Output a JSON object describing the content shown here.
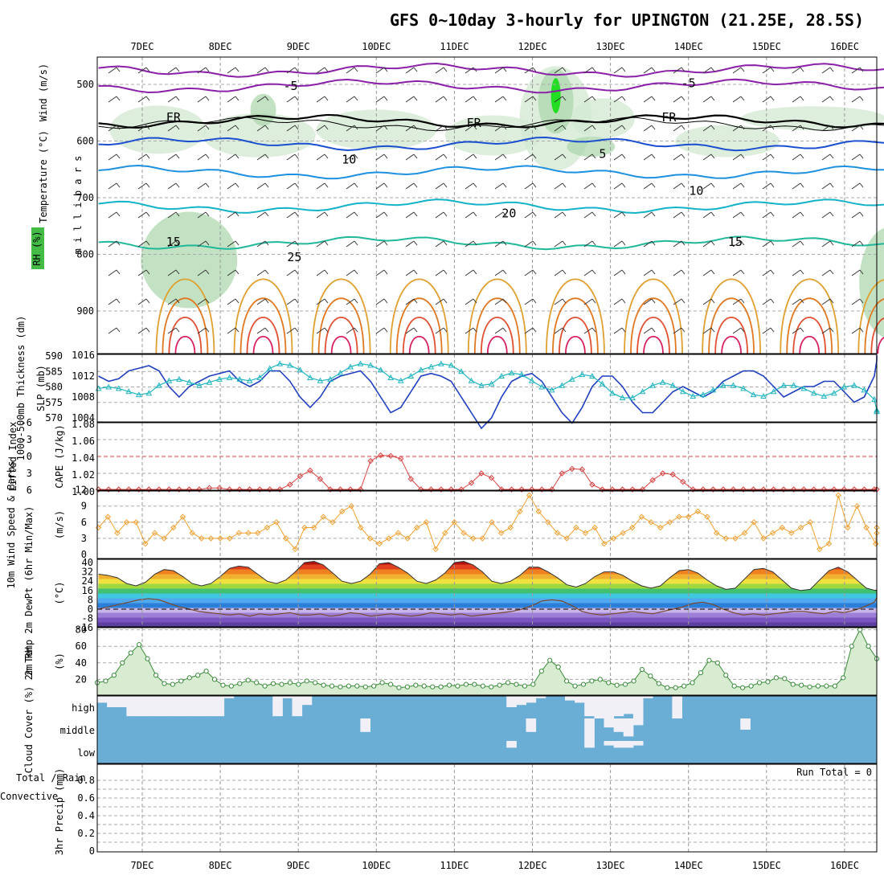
{
  "chart_data": {
    "type": "meteogram",
    "title": "GFS 0~10day 3-hourly for UPINGTON (21.25E, 28.5S)",
    "dates": [
      "7DEC",
      "8DEC",
      "9DEC",
      "10DEC",
      "11DEC",
      "12DEC",
      "13DEC",
      "14DEC",
      "15DEC",
      "16DEC"
    ],
    "upper_air": {
      "ylabel_left": "RH (%)",
      "ylabel_temp": "Temperature (°C)",
      "ylabel_wind": "Wind (m/s)",
      "ylabel_mb": "m i l l i b a r s",
      "pressure_ticks": [
        "500",
        "600",
        "700",
        "800",
        "900"
      ],
      "contour_labels": [
        {
          "text": "FR",
          "day": 0.4,
          "p": 565
        },
        {
          "text": "FR",
          "day": 4.25,
          "p": 575
        },
        {
          "text": "FR",
          "day": 6.75,
          "p": 565
        },
        {
          "text": "-5",
          "day": 1.9,
          "p": 510
        },
        {
          "text": "-5",
          "day": 7.0,
          "p": 505
        },
        {
          "text": "5",
          "day": 5.9,
          "p": 630
        },
        {
          "text": "10",
          "day": 2.65,
          "p": 640
        },
        {
          "text": "10",
          "day": 7.1,
          "p": 695
        },
        {
          "text": "15",
          "day": 0.4,
          "p": 785
        },
        {
          "text": "15",
          "day": 7.6,
          "p": 785
        },
        {
          "text": "20",
          "day": 4.7,
          "p": 735
        },
        {
          "text": "25",
          "day": 1.95,
          "p": 812
        }
      ]
    },
    "thickness_slp": {
      "ylabel_thickness": "1000-500mb Thickness (dm)",
      "ylabel_slp": "SLP (mb)",
      "thickness_ticks": [
        "570",
        "575",
        "580",
        "585",
        "590"
      ],
      "slp_ticks": [
        "1004",
        "1008",
        "1012",
        "1016"
      ],
      "thickness_dm": [
        579.5,
        580,
        579.5,
        578.5,
        577.5,
        578,
        580.5,
        582,
        582.5,
        581.5,
        580.5,
        581.5,
        582.5,
        583,
        582.5,
        582,
        583,
        586,
        587.5,
        587,
        585.5,
        583,
        582,
        582.5,
        584.5,
        586.5,
        587.5,
        587,
        585.5,
        583,
        582,
        583.5,
        585.5,
        586.5,
        587.5,
        587,
        585,
        582,
        580.5,
        581,
        583.5,
        584.5,
        584,
        582,
        580,
        579,
        580.5,
        582.5,
        584,
        583.5,
        581,
        578,
        576.5,
        576.5,
        578.5,
        580.5,
        581.5,
        580.5,
        578.5,
        577,
        577.5,
        579,
        580.5,
        580.5,
        579.5,
        577.5,
        577,
        578.5,
        580.5,
        580.5,
        579.5,
        578,
        577,
        578,
        580,
        580.5,
        579,
        576,
        572.5,
        572
      ],
      "slp_mb": [
        1012,
        1011,
        1011.5,
        1013,
        1013.5,
        1014,
        1013,
        1010,
        1008,
        1010,
        1011,
        1012,
        1012.5,
        1013,
        1011,
        1010,
        1011,
        1013,
        1013,
        1011,
        1008,
        1006,
        1008,
        1011,
        1012,
        1012.5,
        1013,
        1011,
        1008,
        1005,
        1006,
        1009,
        1012,
        1012.5,
        1012,
        1011,
        1008,
        1005,
        1002,
        1004,
        1008,
        1011,
        1012,
        1012.5,
        1011,
        1008,
        1005,
        1003,
        1006,
        1010,
        1012,
        1012,
        1010,
        1007,
        1005,
        1005,
        1007,
        1009,
        1010,
        1009,
        1008,
        1009,
        1011,
        1012,
        1013,
        1013,
        1012,
        1010,
        1008,
        1009,
        1010,
        1010,
        1011,
        1011,
        1009,
        1007,
        1008,
        1012,
        1015,
        1016
      ]
    },
    "cape_li": {
      "ylabel_li": "Lifted Index",
      "ylabel_cape": "CAPE (J/kg)",
      "li_ticks": [
        "-6",
        "-3",
        "0",
        "3",
        "6"
      ],
      "cape_ticks": [
        "1.00",
        "1.02",
        "1.04",
        "1.06",
        "1.08"
      ],
      "li_dashed_zero": 0,
      "li_values": [
        6,
        6,
        6,
        6,
        6,
        6,
        6,
        6,
        6,
        6,
        6,
        5.6,
        5.6,
        6,
        6,
        6,
        6,
        6,
        6,
        5,
        3.5,
        2.5,
        4,
        6,
        6,
        6,
        6,
        0.8,
        -0.2,
        -0.1,
        0.4,
        4,
        6,
        6,
        6,
        6,
        6,
        4.7,
        3,
        3.8,
        6,
        6,
        6,
        6,
        6,
        6,
        3,
        2.2,
        2.3,
        5,
        6,
        6,
        6,
        6,
        6,
        4.2,
        3,
        3.2,
        4.5,
        6,
        6,
        6,
        6,
        6,
        6,
        6,
        6,
        6,
        6,
        6,
        6,
        6,
        6,
        6,
        6,
        6,
        6,
        6,
        6,
        6
      ]
    },
    "wind10m": {
      "ylabel": "10m Wind Speed & Barbs",
      "unit": "(m/s)",
      "ticks": [
        "0",
        "3",
        "6",
        "9",
        "12"
      ],
      "speed": [
        5,
        7,
        4,
        6,
        6,
        2,
        4,
        3,
        5,
        7,
        4,
        3,
        3,
        3,
        3,
        4,
        4,
        4,
        5,
        6,
        3,
        1,
        5,
        5,
        7,
        6,
        8,
        9,
        5,
        3,
        2,
        3,
        4,
        3,
        5,
        6,
        1,
        4,
        6,
        4,
        3,
        3,
        6,
        4,
        5,
        8,
        11,
        8,
        6,
        4,
        3,
        5,
        4,
        5,
        2,
        3,
        4,
        5,
        7,
        6,
        5,
        6,
        7,
        7,
        8,
        7,
        4,
        3,
        3,
        4,
        6,
        3,
        4,
        5,
        4,
        5,
        6,
        1,
        2,
        11,
        5,
        9,
        5,
        2,
        5,
        4
      ]
    },
    "temp2m": {
      "ylabel": "2m Temp 2m DewPt (6hr Min/Max)",
      "unit": "(°C)",
      "ticks": [
        "-16",
        "-8",
        "0",
        "8",
        "16",
        "24",
        "32",
        "40"
      ],
      "temp": [
        30,
        29,
        27,
        22,
        20,
        23,
        30,
        34,
        33,
        28,
        22,
        20,
        22,
        28,
        35,
        37,
        36,
        30,
        24,
        22,
        25,
        32,
        40,
        41,
        38,
        31,
        24,
        22,
        24,
        30,
        39,
        40,
        36,
        31,
        24,
        22,
        25,
        31,
        40,
        41,
        38,
        32,
        24,
        22,
        24,
        29,
        36,
        36,
        32,
        27,
        21,
        19,
        22,
        28,
        32,
        32,
        29,
        24,
        20,
        18,
        20,
        27,
        33,
        34,
        31,
        25,
        20,
        17,
        18,
        26,
        34,
        35,
        32,
        25,
        18,
        16,
        17,
        25,
        33,
        36,
        32,
        25,
        18,
        16,
        17,
        22
      ],
      "dewpt": [
        0,
        2,
        4,
        6,
        8,
        9,
        8,
        5,
        2,
        0,
        -2,
        -3,
        -4,
        -5,
        -4,
        -6,
        -4,
        -5,
        -4,
        -3,
        -5,
        -5,
        -4,
        -6,
        -5,
        -3,
        -4,
        -6,
        -5,
        -4,
        -5,
        -6,
        -5,
        -3,
        -4,
        -5,
        -4,
        -6,
        -5,
        -4,
        -3,
        -2,
        0,
        3,
        7,
        8,
        7,
        3,
        -2,
        -4,
        -5,
        -4,
        -3,
        -2,
        -3,
        -4,
        -2,
        0,
        2,
        5,
        6,
        4,
        0,
        -3,
        -5,
        -4,
        -5,
        -4,
        -3,
        -2,
        -2,
        -3,
        -4,
        -2,
        -3,
        -1,
        2,
        6,
        10,
        16
      ]
    },
    "rh2m": {
      "ylabel": "2m RH",
      "unit": "(%)",
      "ticks": [
        "20",
        "40",
        "60",
        "80"
      ],
      "values": [
        16,
        18,
        25,
        40,
        52,
        62,
        45,
        25,
        15,
        14,
        18,
        22,
        25,
        30,
        20,
        13,
        12,
        15,
        19,
        16,
        12,
        15,
        14,
        16,
        14,
        18,
        16,
        13,
        12,
        11,
        12,
        12,
        11,
        12,
        16,
        14,
        10,
        11,
        13,
        12,
        11,
        11,
        13,
        12,
        14,
        14,
        12,
        11,
        13,
        16,
        14,
        12,
        14,
        30,
        43,
        35,
        18,
        12,
        14,
        18,
        20,
        16,
        13,
        14,
        18,
        32,
        24,
        15,
        10,
        10,
        12,
        16,
        28,
        43,
        40,
        25,
        12,
        10,
        12,
        16,
        17,
        22,
        21,
        14,
        13,
        11,
        12,
        12,
        12,
        22,
        60,
        80,
        60,
        45
      ]
    },
    "cloud": {
      "ylabel": "Cloud Cover (%)",
      "levels": [
        "high",
        "middle",
        "low"
      ],
      "background_color": "#6aaed6",
      "clear_color": "#f2f0f7",
      "high": [
        0.3,
        0.5,
        0.5,
        0.9,
        0.9,
        0.9,
        0.9,
        0.9,
        0.9,
        0.9,
        0.9,
        0.9,
        0.9,
        0.1,
        0,
        0,
        0,
        0,
        0.9,
        0.1,
        0.9,
        0.4,
        0,
        0,
        0,
        0,
        0,
        0,
        0,
        0,
        0,
        0,
        0,
        0,
        0,
        0,
        0,
        0,
        0,
        0,
        0,
        0,
        0.5,
        0.4,
        0.3,
        0.1,
        0,
        0,
        0.2,
        0.3,
        0.9,
        1,
        1,
        0.9,
        0.8,
        1,
        0.1,
        0,
        0,
        1,
        0,
        0,
        0,
        0,
        0,
        0,
        0,
        0,
        0,
        0,
        0,
        0,
        0,
        0,
        0,
        0,
        0,
        0,
        0,
        0
      ],
      "middle": [
        0,
        0,
        0,
        0,
        0,
        0,
        0,
        0,
        0,
        0,
        0,
        0,
        0,
        0,
        0,
        0,
        0,
        0,
        0,
        0,
        0,
        0,
        0,
        0,
        0,
        0,
        0,
        0.6,
        0,
        0,
        0,
        0,
        0,
        0,
        0,
        0,
        0,
        0,
        0,
        0,
        0,
        0,
        0,
        0,
        0.6,
        0,
        0,
        0,
        0,
        0,
        1,
        0,
        0.4,
        0.6,
        0.8,
        0.3,
        0,
        0,
        0,
        0,
        0,
        0,
        0,
        0,
        0,
        0,
        0.5,
        0,
        0,
        0,
        0,
        0,
        0,
        0,
        0,
        0,
        0,
        0,
        0,
        0
      ],
      "low": [
        0,
        0,
        0,
        0,
        0,
        0,
        0,
        0,
        0,
        0,
        0,
        0,
        0,
        0,
        0,
        0,
        0,
        0,
        0,
        0,
        0,
        0,
        0,
        0,
        0,
        0,
        0,
        0,
        0,
        0,
        0,
        0,
        0,
        0,
        0,
        0,
        0,
        0,
        0,
        0,
        0,
        0,
        0.3,
        0,
        0,
        0,
        0,
        0,
        0,
        0,
        0.3,
        0,
        0.2,
        0.3,
        0.3,
        0.2,
        0,
        0,
        0,
        0,
        0,
        0,
        0,
        0,
        0,
        0,
        0,
        0,
        0,
        0,
        0,
        0,
        0,
        0,
        0,
        0,
        0,
        0,
        0,
        0
      ]
    },
    "precip": {
      "ylabel_total": "Total / Rain",
      "ylabel_conv": "Convective",
      "ylabel": "3hr Precip (mm)",
      "ticks": [
        "0",
        "0.2",
        "0.4",
        "0.6",
        "0.8"
      ],
      "run_total": "Run Total = 0",
      "values": [
        0,
        0,
        0,
        0,
        0,
        0,
        0,
        0,
        0,
        0,
        0,
        0,
        0,
        0,
        0,
        0,
        0,
        0,
        0,
        0,
        0,
        0,
        0,
        0,
        0,
        0,
        0,
        0,
        0,
        0,
        0,
        0,
        0,
        0,
        0,
        0,
        0,
        0,
        0,
        0,
        0,
        0,
        0,
        0,
        0,
        0,
        0,
        0,
        0,
        0,
        0,
        0,
        0,
        0,
        0,
        0,
        0,
        0,
        0,
        0,
        0,
        0,
        0,
        0,
        0,
        0,
        0,
        0,
        0,
        0,
        0,
        0,
        0,
        0,
        0,
        0,
        0,
        0,
        0,
        0
      ]
    }
  }
}
